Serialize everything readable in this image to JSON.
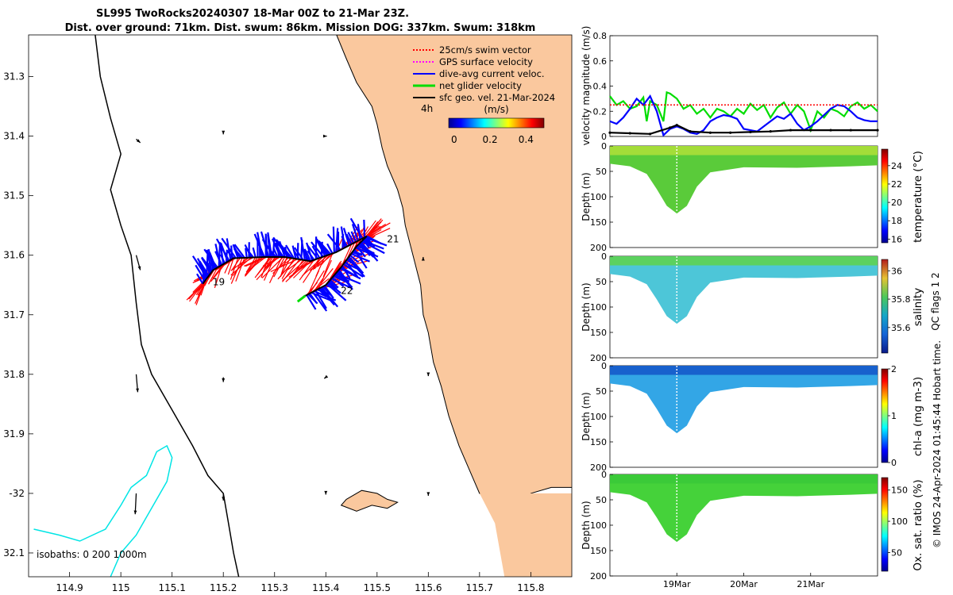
{
  "title": {
    "line1": "SL995 TwoRocks20240307 18-Mar 00Z to 21-Mar 23Z.",
    "line2": "Dist. over ground: 71km. Dist. swum: 86km. Mission DOG: 337km. Swum: 318km"
  },
  "colors": {
    "land": "#FAC89E",
    "isobath_200": "#00E5E5",
    "swim": "#FF0000",
    "gps": "#FF00FF",
    "dive_avg": "#0000FF",
    "net": "#00DD00",
    "sfc": "#000000"
  },
  "chart_data": [
    {
      "type": "map",
      "name": "glider-track-map",
      "xlim": [
        114.82,
        115.88
      ],
      "ylim": [
        32.14,
        31.23
      ],
      "x_ticks": [
        {
          "v": 114.9,
          "label": "114.9"
        },
        {
          "v": 115.0,
          "label": "115"
        },
        {
          "v": 115.1,
          "label": "115.1"
        },
        {
          "v": 115.2,
          "label": "115.2"
        },
        {
          "v": 115.3,
          "label": "115.3"
        },
        {
          "v": 115.4,
          "label": "115.4"
        },
        {
          "v": 115.5,
          "label": "115.5"
        },
        {
          "v": 115.6,
          "label": "115.6"
        },
        {
          "v": 115.7,
          "label": "115.7"
        },
        {
          "v": 115.8,
          "label": "115.8"
        }
      ],
      "y_ticks": [
        {
          "v": 31.3,
          "label": "31.3"
        },
        {
          "v": 31.4,
          "label": "31.4"
        },
        {
          "v": 31.5,
          "label": "31.5"
        },
        {
          "v": 31.6,
          "label": "31.6"
        },
        {
          "v": 31.7,
          "label": "31.7"
        },
        {
          "v": 31.8,
          "label": "31.8"
        },
        {
          "v": 31.9,
          "label": "31.9"
        },
        {
          "v": 32.0,
          "label": "-32"
        },
        {
          "v": 32.1,
          "label": "32.1"
        }
      ],
      "legend": [
        {
          "label": "25cm/s swim vector",
          "color": "#FF0000",
          "style": "dotted"
        },
        {
          "label": "GPS surface velocity",
          "color": "#FF00FF",
          "style": "dotted"
        },
        {
          "label": "dive-avg current veloc.",
          "color": "#0000FF",
          "style": "solid"
        },
        {
          "label": "net glider velocity",
          "color": "#00DD00",
          "style": "solid"
        },
        {
          "label": "sfc geo. vel. 21-Mar-2024",
          "color": "#000000",
          "style": "solid"
        }
      ],
      "scale_label": "4h",
      "colorbar": {
        "title": "(m/s)",
        "ticks": [
          "0",
          "0.2",
          "0.4"
        ],
        "range": [
          -0.03,
          0.5
        ]
      },
      "isobaths_label": "isobaths: 0   200  1000m",
      "day_labels": [
        {
          "label": "19",
          "lon": 115.17,
          "lat": 31.645
        },
        {
          "label": "21",
          "lon": 115.51,
          "lat": 31.573
        },
        {
          "label": "22",
          "lon": 115.42,
          "lat": 31.66
        }
      ],
      "track": [
        [
          115.16,
          31.648
        ],
        [
          115.18,
          31.625
        ],
        [
          115.22,
          31.605
        ],
        [
          115.28,
          31.603
        ],
        [
          115.32,
          31.603
        ],
        [
          115.37,
          31.61
        ],
        [
          115.42,
          31.595
        ],
        [
          115.48,
          31.568
        ],
        [
          115.46,
          31.585
        ],
        [
          115.43,
          31.62
        ],
        [
          115.4,
          31.65
        ],
        [
          115.36,
          31.668
        ]
      ],
      "coastline": [
        [
          115.421,
          31.23
        ],
        [
          115.44,
          31.27
        ],
        [
          115.46,
          31.31
        ],
        [
          115.49,
          31.35
        ],
        [
          115.5,
          31.38
        ],
        [
          115.51,
          31.42
        ],
        [
          115.52,
          31.45
        ],
        [
          115.54,
          31.49
        ],
        [
          115.55,
          31.52
        ],
        [
          115.555,
          31.55
        ],
        [
          115.57,
          31.6
        ],
        [
          115.585,
          31.65
        ],
        [
          115.59,
          31.7
        ],
        [
          115.6,
          31.73
        ],
        [
          115.61,
          31.78
        ],
        [
          115.625,
          31.82
        ],
        [
          115.64,
          31.87
        ],
        [
          115.66,
          31.92
        ],
        [
          115.68,
          31.96
        ],
        [
          115.7,
          32.0
        ],
        [
          115.73,
          32.02
        ],
        [
          115.76,
          32.03
        ],
        [
          115.8,
          32.0
        ],
        [
          115.84,
          31.99
        ],
        [
          115.88,
          31.99
        ]
      ],
      "island": [
        [
          115.44,
          32.01
        ],
        [
          115.47,
          31.995
        ],
        [
          115.5,
          32.0
        ],
        [
          115.52,
          32.01
        ],
        [
          115.54,
          32.015
        ],
        [
          115.52,
          32.025
        ],
        [
          115.49,
          32.02
        ],
        [
          115.46,
          32.03
        ],
        [
          115.43,
          32.02
        ]
      ],
      "isobath_200": [
        [
          114.83,
          32.06
        ],
        [
          114.88,
          32.07
        ],
        [
          114.92,
          32.08
        ],
        [
          114.97,
          32.06
        ],
        [
          115.0,
          32.02
        ],
        [
          115.02,
          31.99
        ],
        [
          115.05,
          31.97
        ],
        [
          115.07,
          31.93
        ],
        [
          115.09,
          31.92
        ],
        [
          115.1,
          31.94
        ],
        [
          115.09,
          31.98
        ],
        [
          115.07,
          32.01
        ],
        [
          115.05,
          32.04
        ],
        [
          115.03,
          32.07
        ],
        [
          115.0,
          32.1
        ],
        [
          114.98,
          32.14
        ]
      ],
      "isobath_1000": [
        [
          114.95,
          31.23
        ],
        [
          114.96,
          31.3
        ],
        [
          114.98,
          31.37
        ],
        [
          115.0,
          31.43
        ],
        [
          114.98,
          31.49
        ],
        [
          115.0,
          31.55
        ],
        [
          115.02,
          31.6
        ],
        [
          115.03,
          31.68
        ],
        [
          115.04,
          31.75
        ],
        [
          115.06,
          31.8
        ],
        [
          115.1,
          31.86
        ],
        [
          115.14,
          31.92
        ],
        [
          115.17,
          31.97
        ],
        [
          115.2,
          32.0
        ],
        [
          115.21,
          32.05
        ],
        [
          115.22,
          32.1
        ],
        [
          115.23,
          32.14
        ]
      ],
      "geo_arrows": [
        [
          115.03,
          31.405,
          0.008,
          0.006
        ],
        [
          115.2,
          31.395,
          0.0,
          0.002
        ],
        [
          115.4,
          31.4,
          0.002,
          0.0
        ],
        [
          115.03,
          31.6,
          0.008,
          0.025
        ],
        [
          115.59,
          31.606,
          0.0,
          -0.003
        ],
        [
          115.03,
          31.8,
          0.003,
          0.03
        ],
        [
          115.2,
          31.805,
          0.0,
          0.008
        ],
        [
          115.4,
          31.805,
          -0.003,
          0.002
        ],
        [
          115.6,
          31.8,
          0.0,
          0.003
        ],
        [
          115.03,
          32.0,
          -0.002,
          0.035
        ],
        [
          115.2,
          32.0,
          0.0,
          0.012
        ],
        [
          115.4,
          32.0,
          0.0,
          0.002
        ],
        [
          115.6,
          32.002,
          0.0,
          0.002
        ]
      ]
    },
    {
      "type": "line",
      "name": "velocity-magnitude",
      "ylabel": "velocity magnitude (m/s)",
      "ylim": [
        0,
        0.8
      ],
      "y_ticks": [
        "0",
        "0.2",
        "0.4",
        "0.6",
        "0.8"
      ],
      "x_range_days": [
        18.0,
        22.0
      ],
      "series": [
        {
          "name": "net glider velocity",
          "color": "#00DD00",
          "x": [
            18.0,
            18.1,
            18.2,
            18.3,
            18.4,
            18.5,
            18.55,
            18.6,
            18.7,
            18.8,
            18.85,
            18.9,
            19.0,
            19.1,
            19.2,
            19.3,
            19.4,
            19.5,
            19.6,
            19.7,
            19.8,
            19.9,
            20.0,
            20.1,
            20.2,
            20.3,
            20.4,
            20.5,
            20.6,
            20.7,
            20.8,
            20.9,
            21.0,
            21.1,
            21.2,
            21.3,
            21.4,
            21.5,
            21.6,
            21.7,
            21.8,
            21.9,
            22.0
          ],
          "y": [
            0.32,
            0.25,
            0.28,
            0.22,
            0.24,
            0.31,
            0.12,
            0.28,
            0.25,
            0.12,
            0.35,
            0.34,
            0.3,
            0.22,
            0.25,
            0.18,
            0.22,
            0.15,
            0.22,
            0.2,
            0.16,
            0.22,
            0.18,
            0.26,
            0.21,
            0.25,
            0.15,
            0.23,
            0.27,
            0.18,
            0.25,
            0.2,
            0.05,
            0.2,
            0.15,
            0.22,
            0.2,
            0.16,
            0.24,
            0.27,
            0.22,
            0.25,
            0.2
          ]
        },
        {
          "name": "dive-avg current veloc.",
          "color": "#0000FF",
          "x": [
            18.0,
            18.1,
            18.2,
            18.3,
            18.4,
            18.5,
            18.6,
            18.7,
            18.8,
            18.9,
            19.0,
            19.1,
            19.2,
            19.3,
            19.4,
            19.5,
            19.6,
            19.7,
            19.8,
            19.9,
            20.0,
            20.1,
            20.2,
            20.3,
            20.4,
            20.5,
            20.6,
            20.7,
            20.8,
            20.9,
            21.0,
            21.1,
            21.2,
            21.3,
            21.4,
            21.5,
            21.6,
            21.7,
            21.8,
            21.9,
            22.0
          ],
          "y": [
            0.12,
            0.1,
            0.15,
            0.22,
            0.3,
            0.25,
            0.32,
            0.2,
            0.01,
            0.06,
            0.08,
            0.06,
            0.03,
            0.02,
            0.05,
            0.12,
            0.15,
            0.17,
            0.16,
            0.14,
            0.06,
            0.05,
            0.04,
            0.08,
            0.12,
            0.16,
            0.14,
            0.18,
            0.1,
            0.05,
            0.08,
            0.12,
            0.17,
            0.22,
            0.25,
            0.24,
            0.2,
            0.15,
            0.13,
            0.12,
            0.12
          ]
        },
        {
          "name": "sfc geo. vel.",
          "color": "#000000",
          "x": [
            18.0,
            18.3,
            18.6,
            18.9,
            19.0,
            19.2,
            19.5,
            19.8,
            20.1,
            20.4,
            20.7,
            21.0,
            21.3,
            21.6,
            22.0
          ],
          "y": [
            0.03,
            0.025,
            0.02,
            0.07,
            0.09,
            0.04,
            0.03,
            0.03,
            0.035,
            0.04,
            0.05,
            0.05,
            0.05,
            0.05,
            0.05
          ]
        },
        {
          "name": "25cm/s swim vector",
          "color": "#FF0000",
          "x": [
            18.0,
            22.0
          ],
          "y": [
            0.25,
            0.25
          ]
        }
      ]
    },
    {
      "type": "heatmap",
      "name": "temperature-section",
      "ylabel": "Depth (m)",
      "ylim": [
        0,
        200
      ],
      "y_ticks": [
        "0",
        "50",
        "100",
        "150",
        "200"
      ],
      "colorbar_label": "temperature (°C)",
      "cb_ticks": [
        "16",
        "18",
        "20",
        "22",
        "24"
      ],
      "cb_range": [
        15.6,
        25.8
      ],
      "fill_color": "#5ACB3A",
      "surface_color": "#B2E03A"
    },
    {
      "type": "heatmap",
      "name": "salinity-section",
      "ylabel": "Depth (m)",
      "ylim": [
        0,
        200
      ],
      "y_ticks": [
        "0",
        "50",
        "100",
        "150",
        "200"
      ],
      "colorbar_label": "salinity",
      "cb_ticks": [
        "35.6",
        "35.8",
        "36"
      ],
      "cb_range": [
        35.42,
        36.08
      ],
      "fill_color": "#4DC6D8",
      "surface_color": "#5FD24A"
    },
    {
      "type": "heatmap",
      "name": "chla-section",
      "ylabel": "Depth (m)",
      "ylim": [
        0,
        200
      ],
      "y_ticks": [
        "0",
        "50",
        "100",
        "150",
        "200"
      ],
      "colorbar_label": "chl-a (mg m-3)",
      "cb_ticks": [
        "0",
        "1",
        "2"
      ],
      "cb_range": [
        0,
        2
      ],
      "fill_color": "#33A6E6",
      "surface_color": "#1455C8"
    },
    {
      "type": "heatmap",
      "name": "oxygen-section",
      "ylabel": "Depth (m)",
      "ylim": [
        0,
        200
      ],
      "y_ticks": [
        "0",
        "50",
        "100",
        "150",
        "200"
      ],
      "colorbar_label": "Ox. sat. ratio (%)",
      "cb_ticks": [
        "50",
        "100",
        "150"
      ],
      "cb_range": [
        20,
        170
      ],
      "fill_color": "#45D23A",
      "surface_color": "#39C93A",
      "x_ticks": [
        "19Mar",
        "20Mar",
        "21Mar"
      ]
    }
  ],
  "footer": {
    "qc": "QC flags 1  2",
    "stamp": "© IMOS 24-Apr-2024 01:45:44 Hobart time."
  }
}
